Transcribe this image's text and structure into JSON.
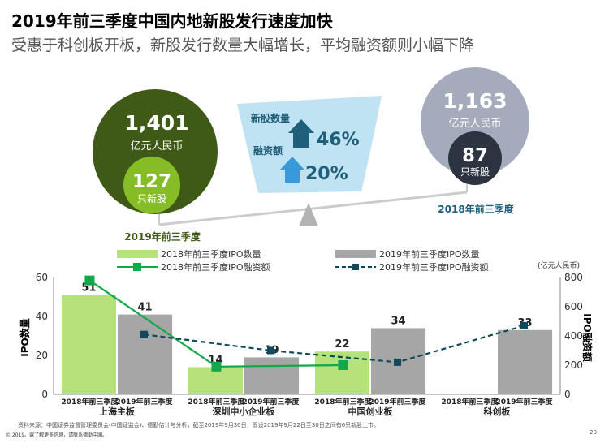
{
  "header": {
    "title": "2019年前三季度中国内地新股发行速度加快",
    "subtitle": "受惠于科创板开板，新股发行数量大幅增长，平均融资额则小幅下降"
  },
  "infographic": {
    "left": {
      "amount": "1,401",
      "unit": "亿元人民币",
      "ipo_count": "127",
      "ipo_label": "只新股",
      "period": "2019年前三季度"
    },
    "right": {
      "amount": "1,163",
      "unit": "亿元人民币",
      "ipo_count": "87",
      "ipo_label": "只新股",
      "period": "2018年前三季度"
    },
    "middle": {
      "count_label": "新股数量",
      "count_change": "46%",
      "funds_label": "融资额",
      "funds_change": "20%"
    }
  },
  "colors": {
    "dark_green": "#3f5a17",
    "lime": "#86bc25",
    "light_lime": "#b5e27a",
    "gray": "#a6a6a6",
    "light_blue": "#bfe3f2",
    "teal": "#1f5f79",
    "green_line": "#10a84a",
    "dark_teal": "#0f4a5c",
    "circle_gray": "#a3abbc",
    "circle_navy": "#2b3440"
  },
  "chart_data": {
    "type": "bar",
    "categories": [
      "上海主板",
      "深圳中小企业板",
      "中国创业板",
      "科创板"
    ],
    "subcategories": [
      "2018年前三季度",
      "2019年前三季度"
    ],
    "series": [
      {
        "name": "2018年前三季度IPO数量",
        "kind": "bar",
        "axis": "left",
        "values": [
          51,
          14,
          22,
          null
        ]
      },
      {
        "name": "2019年前三季度IPO数量",
        "kind": "bar",
        "axis": "left",
        "values": [
          41,
          19,
          34,
          33
        ]
      },
      {
        "name": "2018年前三季度IPO融资额",
        "kind": "line",
        "axis": "right",
        "values": [
          780,
          190,
          200,
          null
        ]
      },
      {
        "name": "2019年前三季度IPO融资额",
        "kind": "line",
        "axis": "right",
        "values": [
          410,
          300,
          220,
          470
        ]
      }
    ],
    "ylabel": "IPO数量",
    "y2label": "IPO融资额",
    "y2unit": "(亿元人民币)",
    "ylim": [
      0,
      60
    ],
    "y2lim": [
      0,
      800
    ],
    "yticks": [
      0,
      20,
      40,
      60
    ],
    "y2ticks": [
      0,
      200,
      400,
      600,
      800
    ],
    "legend_position": "top",
    "grid": false
  },
  "footer": {
    "source": "资料来源：中国证券监督管理委员会(中国证监会)、德勤估计与分析，截至2019年9月30日，假设2019年9月22日至30日之间有6只新股上市。",
    "copyright": "© 2019。欲了解更多信息，请联系德勤中国。",
    "page_number": "20"
  }
}
